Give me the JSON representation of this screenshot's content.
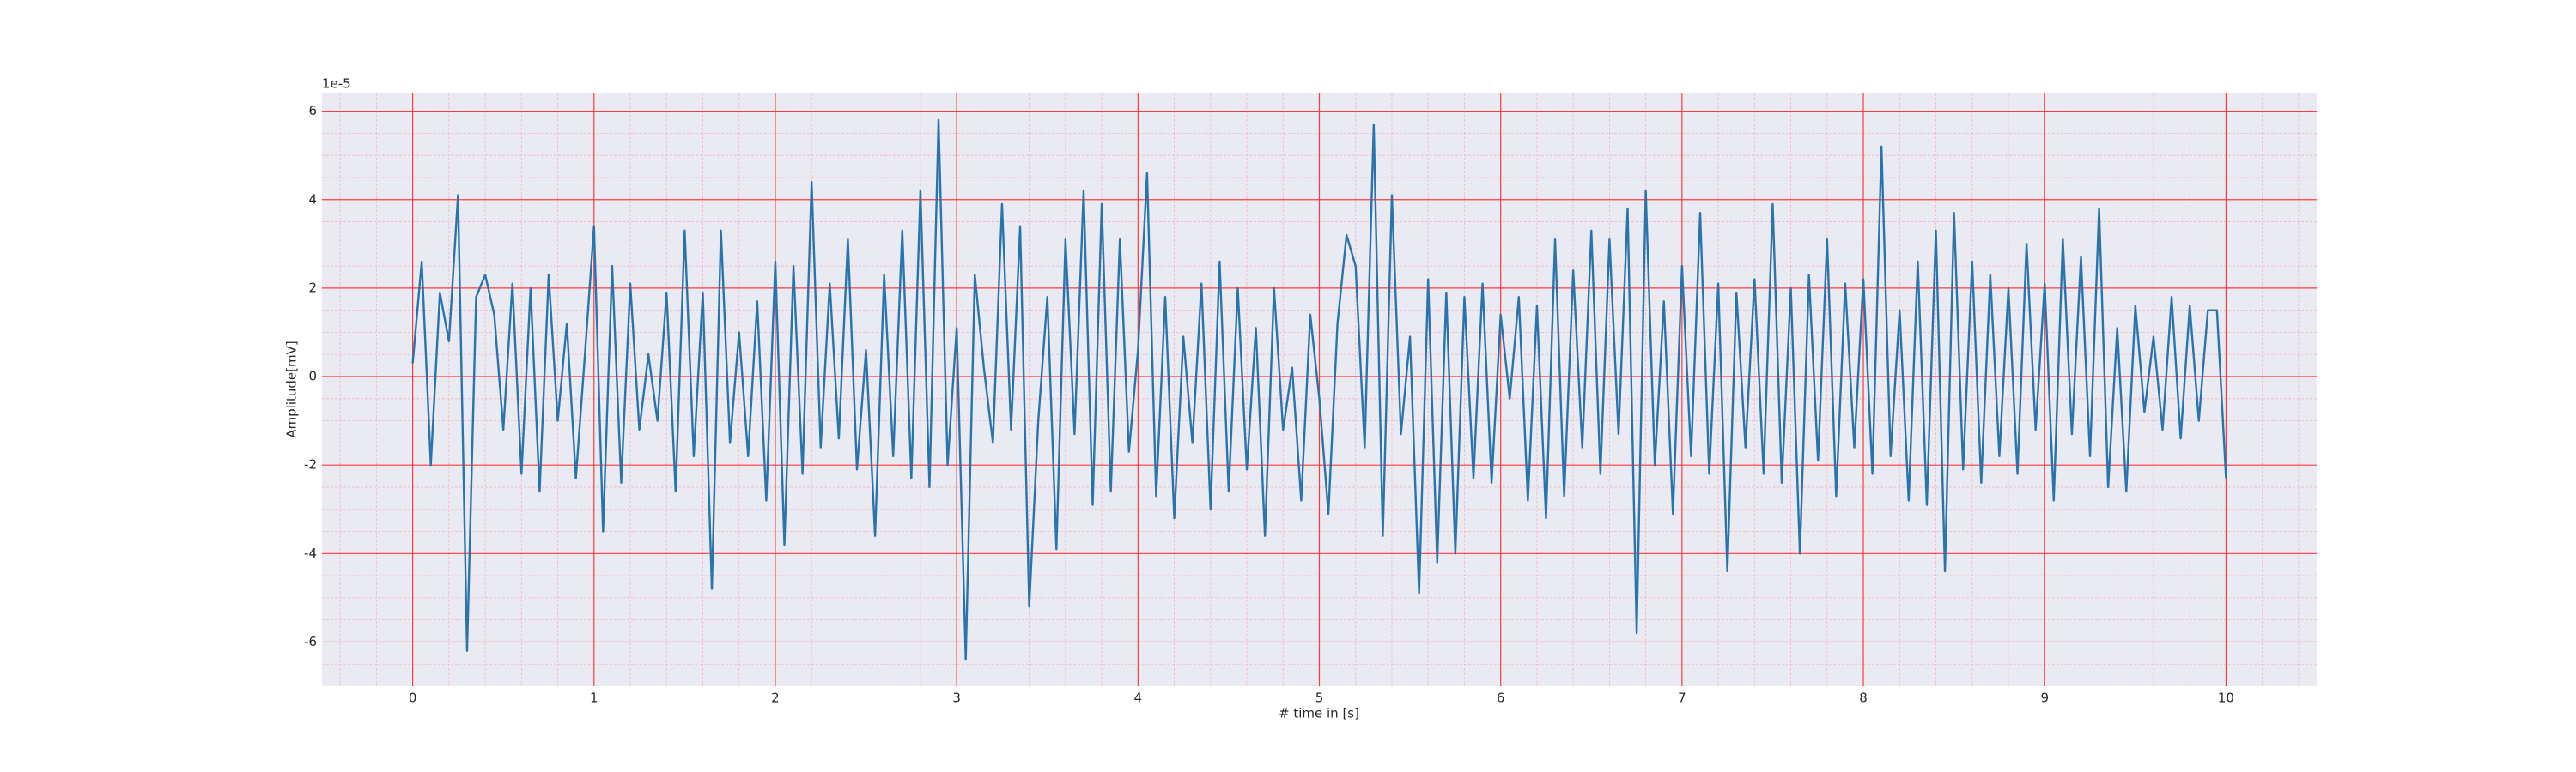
{
  "chart_data": {
    "type": "line",
    "offset_label": "1e-5",
    "x_label": "# time in [s]",
    "y_label": "Amplitude[mV]",
    "color": "#2a74ad",
    "background": "#eaeaf2",
    "grid": true,
    "grid_color": "#ff3b3b",
    "minor_grid_color": "#f6b4bf",
    "xlim": [
      -0.5,
      10.5
    ],
    "ylim": [
      -7,
      6.4
    ],
    "xticks": [
      0,
      1,
      2,
      3,
      4,
      5,
      6,
      7,
      8,
      9,
      10
    ],
    "yticks": [
      -6,
      -4,
      -2,
      0,
      2,
      4,
      6
    ],
    "xminorticks": [
      -0.4,
      -0.2,
      0.2,
      0.4,
      0.6,
      0.8,
      1.2,
      1.4,
      1.6,
      1.8,
      2.2,
      2.4,
      2.6,
      2.8,
      3.2,
      3.4,
      3.6,
      3.8,
      4.2,
      4.4,
      4.6,
      4.8,
      5.2,
      5.4,
      5.6,
      5.8,
      6.2,
      6.4,
      6.6,
      6.8,
      7.2,
      7.4,
      7.6,
      7.8,
      8.2,
      8.4,
      8.6,
      8.8,
      9.2,
      9.4,
      9.6,
      9.8,
      10.2,
      10.4
    ],
    "yminorticks": [
      -6.5,
      -5.5,
      -5,
      -4.5,
      -3.5,
      -3,
      -2.5,
      -1.5,
      -1,
      -0.5,
      0.5,
      1,
      1.5,
      2.5,
      3,
      3.5,
      4.5,
      5,
      5.5
    ],
    "x": [
      0,
      0.05,
      0.1,
      0.15,
      0.2,
      0.25,
      0.3,
      0.35,
      0.4,
      0.45,
      0.5,
      0.55,
      0.6,
      0.65,
      0.7,
      0.75,
      0.8,
      0.85,
      0.9,
      0.95,
      1,
      1.05,
      1.1,
      1.15,
      1.2,
      1.25,
      1.3,
      1.35,
      1.4,
      1.45,
      1.5,
      1.55,
      1.6,
      1.65,
      1.7,
      1.75,
      1.8,
      1.85,
      1.9,
      1.95,
      2,
      2.05,
      2.1,
      2.15,
      2.2,
      2.25,
      2.3,
      2.35,
      2.4,
      2.45,
      2.5,
      2.55,
      2.6,
      2.65,
      2.7,
      2.75,
      2.8,
      2.85,
      2.9,
      2.95,
      3,
      3.05,
      3.1,
      3.15,
      3.2,
      3.25,
      3.3,
      3.35,
      3.4,
      3.45,
      3.5,
      3.55,
      3.6,
      3.65,
      3.7,
      3.75,
      3.8,
      3.85,
      3.9,
      3.95,
      4,
      4.05,
      4.1,
      4.15,
      4.2,
      4.25,
      4.3,
      4.35,
      4.4,
      4.45,
      4.5,
      4.55,
      4.6,
      4.65,
      4.7,
      4.75,
      4.8,
      4.85,
      4.9,
      4.95,
      5,
      5.05,
      5.1,
      5.15,
      5.2,
      5.25,
      5.3,
      5.35,
      5.4,
      5.45,
      5.5,
      5.55,
      5.6,
      5.65,
      5.7,
      5.75,
      5.8,
      5.85,
      5.9,
      5.95,
      6,
      6.05,
      6.1,
      6.15,
      6.2,
      6.25,
      6.3,
      6.35,
      6.4,
      6.45,
      6.5,
      6.55,
      6.6,
      6.65,
      6.7,
      6.75,
      6.8,
      6.85,
      6.9,
      6.95,
      7,
      7.05,
      7.1,
      7.15,
      7.2,
      7.25,
      7.3,
      7.35,
      7.4,
      7.45,
      7.5,
      7.55,
      7.6,
      7.65,
      7.7,
      7.75,
      7.8,
      7.85,
      7.9,
      7.95,
      8,
      8.05,
      8.1,
      8.15,
      8.2,
      8.25,
      8.3,
      8.35,
      8.4,
      8.45,
      8.5,
      8.55,
      8.6,
      8.65,
      8.7,
      8.75,
      8.8,
      8.85,
      8.9,
      8.95,
      9,
      9.05,
      9.1,
      9.15,
      9.2,
      9.25,
      9.3,
      9.35,
      9.4,
      9.45,
      9.5,
      9.55,
      9.6,
      9.65,
      9.7,
      9.75,
      9.8,
      9.85,
      9.9,
      9.95,
      10
    ],
    "values": [
      0.3,
      2.6,
      -2.0,
      1.9,
      0.8,
      4.1,
      -6.2,
      1.8,
      2.3,
      1.4,
      -1.2,
      2.1,
      -2.2,
      2.0,
      -2.6,
      2.3,
      -1.0,
      1.2,
      -2.3,
      0.5,
      3.4,
      -3.5,
      2.5,
      -2.4,
      2.1,
      -1.2,
      0.5,
      -1.0,
      1.9,
      -2.6,
      3.3,
      -1.8,
      1.9,
      -4.8,
      3.3,
      -1.5,
      1.0,
      -1.8,
      1.7,
      -2.8,
      2.6,
      -3.8,
      2.5,
      -2.2,
      4.4,
      -1.6,
      2.1,
      -1.4,
      3.1,
      -2.1,
      0.6,
      -3.6,
      2.3,
      -1.8,
      3.3,
      -2.3,
      4.2,
      -2.5,
      5.8,
      -2.0,
      1.1,
      -6.4,
      2.3,
      0.2,
      -1.5,
      3.9,
      -1.2,
      3.4,
      -5.2,
      -1.0,
      1.8,
      -3.9,
      3.1,
      -1.3,
      4.2,
      -2.9,
      3.9,
      -2.6,
      3.1,
      -1.7,
      0.6,
      4.6,
      -2.7,
      1.8,
      -3.2,
      0.9,
      -1.5,
      2.1,
      -3.0,
      2.6,
      -2.6,
      2.0,
      -2.1,
      1.1,
      -3.6,
      2.0,
      -1.2,
      0.2,
      -2.8,
      1.4,
      -0.5,
      -3.1,
      1.2,
      3.2,
      2.5,
      -1.6,
      5.7,
      -3.6,
      4.1,
      -1.3,
      0.9,
      -4.9,
      2.2,
      -4.2,
      1.9,
      -4.0,
      1.8,
      -2.3,
      2.1,
      -2.4,
      1.4,
      -0.5,
      1.8,
      -2.8,
      1.6,
      -3.2,
      3.1,
      -2.7,
      2.4,
      -1.6,
      3.3,
      -2.2,
      3.1,
      -1.3,
      3.8,
      -5.8,
      4.2,
      -2.0,
      1.7,
      -3.1,
      2.5,
      -1.8,
      3.7,
      -2.2,
      2.1,
      -4.4,
      1.9,
      -1.6,
      2.2,
      -2.2,
      3.9,
      -2.4,
      2.0,
      -4.0,
      2.3,
      -1.9,
      3.1,
      -2.7,
      2.1,
      -1.6,
      2.2,
      -2.2,
      5.2,
      -1.8,
      1.5,
      -2.8,
      2.6,
      -2.9,
      3.3,
      -4.4,
      3.7,
      -2.1,
      2.6,
      -2.4,
      2.3,
      -1.8,
      2.0,
      -2.2,
      3.0,
      -1.2,
      2.1,
      -2.8,
      3.1,
      -1.3,
      2.7,
      -1.8,
      3.8,
      -2.5,
      1.1,
      -2.6,
      1.6,
      -0.8,
      0.9,
      -1.2,
      1.8,
      -1.4,
      1.6,
      -1.0,
      1.5,
      1.5,
      -2.3
    ]
  }
}
